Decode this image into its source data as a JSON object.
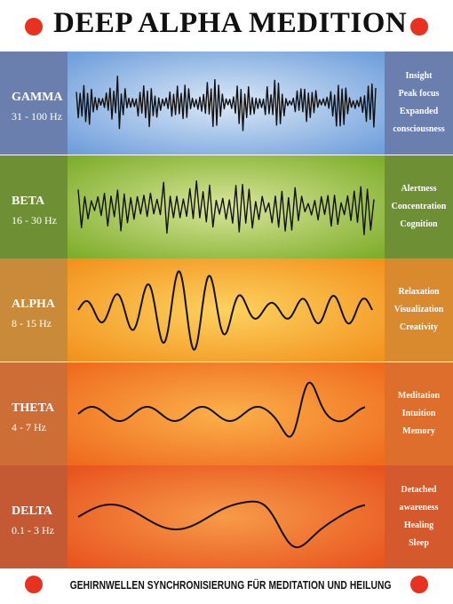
{
  "title": "DEEP ALPHA MEDITION",
  "footer": "GEHIRNWELLEN  SYNCHRONISIERUNG FÜR MEDITATION UND HEILUNG",
  "colors": {
    "dot": "#e8311e",
    "wave_stroke": "#111111"
  },
  "bands": [
    {
      "name": "GAMMA",
      "range": "31 - 100 Hz",
      "states": [
        "Insight",
        "Peak focus",
        "Expanded",
        "consciousness"
      ],
      "colors": {
        "side_left": "#6b7fae",
        "side_right": "#6b7fae",
        "inner": "#dce9f6",
        "outer": "#6f9fdc"
      }
    },
    {
      "name": "BETA",
      "range": "16 - 30 Hz",
      "states": [
        "Alertness",
        "Concentration",
        "Cognition"
      ],
      "colors": {
        "side_left": "#6f8f35",
        "side_right": "#6f8f35",
        "inner": "#d9e69a",
        "outer": "#7fae2c"
      }
    },
    {
      "name": "ALPHA",
      "range": "8 - 15 Hz",
      "states": [
        "Relaxation",
        "Visualization",
        "Creativity"
      ],
      "colors": {
        "side_left": "#c98a3a",
        "side_right": "#d98a2f",
        "inner": "#fdd25e",
        "outer": "#f3921f"
      }
    },
    {
      "name": "THETA",
      "range": "4 - 7 Hz",
      "states": [
        "Meditation",
        "Intuition",
        "Memory"
      ],
      "colors": {
        "side_left": "#cd6e36",
        "side_right": "#dd6e2b",
        "inner": "#fbb04a",
        "outer": "#ef6b1e"
      }
    },
    {
      "name": "DELTA",
      "range": "0.1 - 3 Hz",
      "states": [
        "Detached",
        "awareness",
        "Healing",
        "Sleep"
      ],
      "colors": {
        "side_left": "#c45a34",
        "side_right": "#d4592c",
        "inner": "#f79b48",
        "outer": "#e8541f"
      }
    }
  ]
}
